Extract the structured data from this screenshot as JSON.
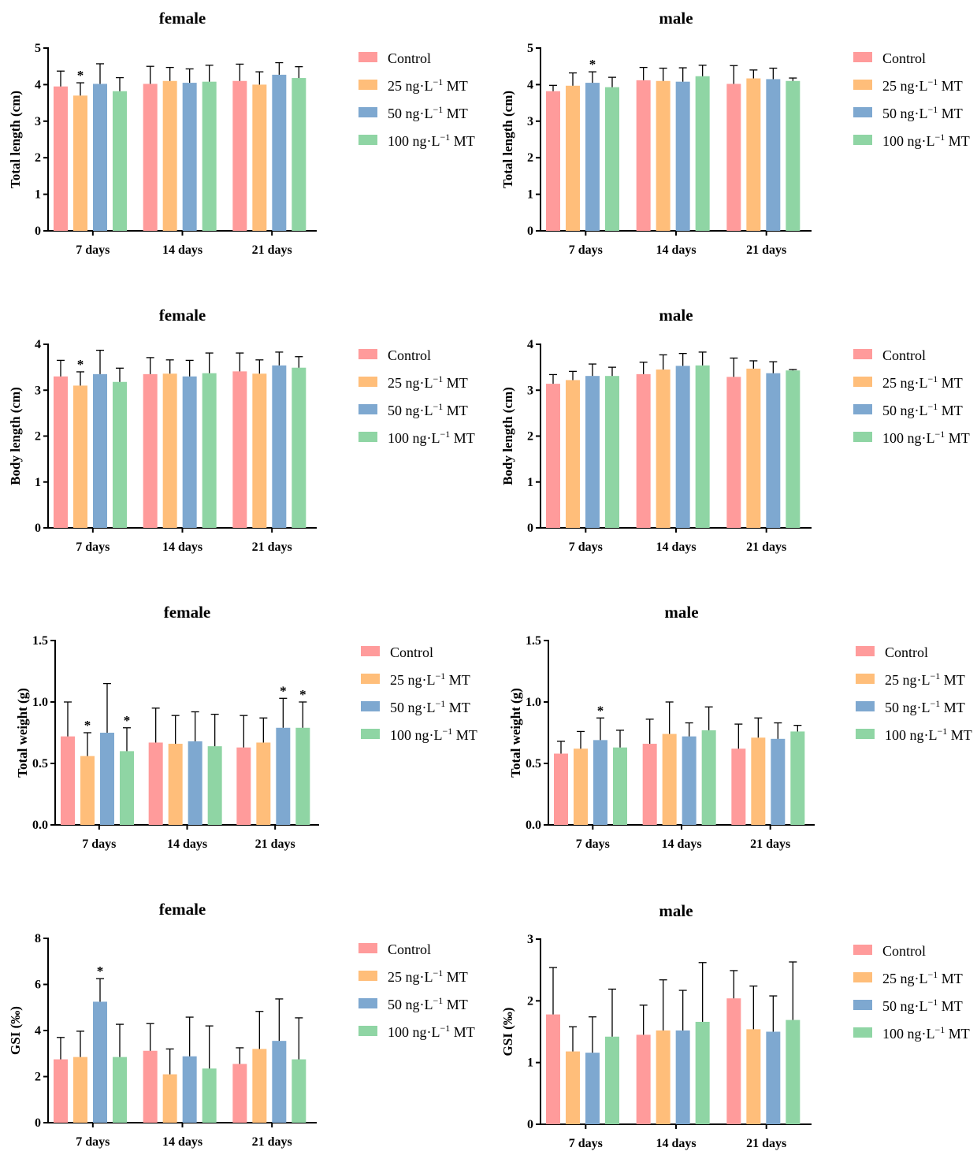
{
  "colors": {
    "Control": "#FF9B9B",
    "25 ng·L⁻¹ MT": "#FFBE7A",
    "50 ng·L⁻¹ MT": "#7EA8D0",
    "100 ng·L⁻¹ MT": "#8FD5A4"
  },
  "chart_data": [
    {
      "type": "bar",
      "title": "female",
      "ylabel": "Total length (cm)",
      "ylim": [
        0,
        5
      ],
      "yticks": [
        "0",
        "1",
        "2",
        "3",
        "4",
        "5"
      ],
      "categories": [
        "7 days",
        "14 days",
        "21 days"
      ],
      "series": [
        {
          "name": "Control",
          "label": "Control",
          "values": [
            3.95,
            4.02,
            4.1
          ],
          "errors": [
            0.42,
            0.48,
            0.46
          ],
          "sig": [
            false,
            false,
            false
          ]
        },
        {
          "name": "25 ng·L⁻¹ MT",
          "label": "25 ng·L",
          "sup": "−1",
          "suffix": "MT",
          "values": [
            3.7,
            4.1,
            4.0
          ],
          "errors": [
            0.35,
            0.37,
            0.35
          ],
          "sig": [
            true,
            false,
            false
          ]
        },
        {
          "name": "50 ng·L⁻¹ MT",
          "label": "50 ng·L",
          "sup": "−1",
          "suffix": "MT",
          "values": [
            4.02,
            4.05,
            4.27
          ],
          "errors": [
            0.55,
            0.38,
            0.33
          ],
          "sig": [
            false,
            false,
            false
          ]
        },
        {
          "name": "100 ng·L⁻¹ MT",
          "label": "100 ng·L",
          "sup": "−1",
          "suffix": "MT",
          "values": [
            3.82,
            4.08,
            4.18
          ],
          "errors": [
            0.37,
            0.45,
            0.31
          ],
          "sig": [
            false,
            false,
            false
          ]
        }
      ]
    },
    {
      "type": "bar",
      "title": "male",
      "ylabel": "Total length (cm)",
      "ylim": [
        0,
        5
      ],
      "yticks": [
        "0",
        "1",
        "2",
        "3",
        "4",
        "5"
      ],
      "categories": [
        "7 days",
        "14 days",
        "21 days"
      ],
      "series": [
        {
          "name": "Control",
          "label": "Control",
          "values": [
            3.82,
            4.12,
            4.02
          ],
          "errors": [
            0.16,
            0.35,
            0.5
          ],
          "sig": [
            false,
            false,
            false
          ]
        },
        {
          "name": "25 ng·L⁻¹ MT",
          "label": "25 ng·L",
          "sup": "−1",
          "suffix": "MT",
          "values": [
            3.97,
            4.1,
            4.17
          ],
          "errors": [
            0.35,
            0.35,
            0.23
          ],
          "sig": [
            false,
            false,
            false
          ]
        },
        {
          "name": "50 ng·L⁻¹ MT",
          "label": "50 ng·L",
          "sup": "−1",
          "suffix": "MT",
          "values": [
            4.05,
            4.08,
            4.15
          ],
          "errors": [
            0.3,
            0.38,
            0.3
          ],
          "sig": [
            true,
            false,
            false
          ]
        },
        {
          "name": "100 ng·L⁻¹ MT",
          "label": "100 ng·L",
          "sup": "−1",
          "suffix": "MT",
          "values": [
            3.93,
            4.23,
            4.1
          ],
          "errors": [
            0.27,
            0.3,
            0.08
          ],
          "sig": [
            false,
            false,
            false
          ]
        }
      ]
    },
    {
      "type": "bar",
      "title": "female",
      "ylabel": "Body length (cm)",
      "ylim": [
        0,
        4
      ],
      "yticks": [
        "0",
        "1",
        "2",
        "3",
        "4"
      ],
      "categories": [
        "7 days",
        "14 days",
        "21 days"
      ],
      "series": [
        {
          "name": "Control",
          "label": "Control",
          "values": [
            3.3,
            3.35,
            3.41
          ],
          "errors": [
            0.35,
            0.36,
            0.4
          ],
          "sig": [
            false,
            false,
            false
          ]
        },
        {
          "name": "25 ng·L⁻¹ MT",
          "label": "25 ng·L",
          "sup": "−1",
          "suffix": "MT",
          "values": [
            3.1,
            3.36,
            3.36
          ],
          "errors": [
            0.3,
            0.3,
            0.3
          ],
          "sig": [
            true,
            false,
            false
          ]
        },
        {
          "name": "50 ng·L⁻¹ MT",
          "label": "50 ng·L",
          "sup": "−1",
          "suffix": "MT",
          "values": [
            3.35,
            3.3,
            3.54
          ],
          "errors": [
            0.52,
            0.35,
            0.29
          ],
          "sig": [
            false,
            false,
            false
          ]
        },
        {
          "name": "100 ng·L⁻¹ MT",
          "label": "100 ng·L",
          "sup": "−1",
          "suffix": "MT",
          "values": [
            3.18,
            3.37,
            3.49
          ],
          "errors": [
            0.3,
            0.44,
            0.24
          ],
          "sig": [
            false,
            false,
            false
          ]
        }
      ]
    },
    {
      "type": "bar",
      "title": "male",
      "ylabel": "Body length (cm)",
      "ylim": [
        0,
        4
      ],
      "yticks": [
        "0",
        "1",
        "2",
        "3",
        "4"
      ],
      "categories": [
        "7 days",
        "14 days",
        "21 days"
      ],
      "series": [
        {
          "name": "Control",
          "label": "Control",
          "values": [
            3.14,
            3.35,
            3.29
          ],
          "errors": [
            0.2,
            0.26,
            0.41
          ],
          "sig": [
            false,
            false,
            false
          ]
        },
        {
          "name": "25 ng·L⁻¹ MT",
          "label": "25 ng·L",
          "sup": "−1",
          "suffix": "MT",
          "values": [
            3.22,
            3.45,
            3.47
          ],
          "errors": [
            0.19,
            0.32,
            0.17
          ],
          "sig": [
            false,
            false,
            false
          ]
        },
        {
          "name": "50 ng·L⁻¹ MT",
          "label": "50 ng·L",
          "sup": "−1",
          "suffix": "MT",
          "values": [
            3.31,
            3.53,
            3.37
          ],
          "errors": [
            0.26,
            0.27,
            0.25
          ],
          "sig": [
            false,
            false,
            false
          ]
        },
        {
          "name": "100 ng·L⁻¹ MT",
          "label": "100 ng·L",
          "sup": "−1",
          "suffix": "MT",
          "values": [
            3.31,
            3.54,
            3.43
          ],
          "errors": [
            0.19,
            0.29,
            0.02
          ],
          "sig": [
            false,
            false,
            false
          ]
        }
      ]
    },
    {
      "type": "bar",
      "title": "female",
      "ylabel": "Total weight (g)",
      "ylim": [
        0,
        1.5
      ],
      "yticks": [
        "0.0",
        "0.5",
        "1.0",
        "1.5"
      ],
      "categories": [
        "7 days",
        "14 days",
        "21 days"
      ],
      "series": [
        {
          "name": "Control",
          "label": "Control",
          "values": [
            0.72,
            0.67,
            0.63
          ],
          "errors": [
            0.28,
            0.28,
            0.26
          ],
          "sig": [
            false,
            false,
            false
          ]
        },
        {
          "name": "25 ng·L⁻¹ MT",
          "label": "25 ng·L",
          "sup": "−1",
          "suffix": "MT",
          "values": [
            0.56,
            0.66,
            0.67
          ],
          "errors": [
            0.19,
            0.23,
            0.2
          ],
          "sig": [
            true,
            false,
            false
          ]
        },
        {
          "name": "50 ng·L⁻¹ MT",
          "label": "50 ng·L",
          "sup": "−1",
          "suffix": "MT",
          "values": [
            0.75,
            0.68,
            0.79
          ],
          "errors": [
            0.4,
            0.24,
            0.24
          ],
          "sig": [
            false,
            false,
            true
          ]
        },
        {
          "name": "100 ng·L⁻¹ MT",
          "label": "100 ng·L",
          "sup": "−1",
          "suffix": "MT",
          "values": [
            0.6,
            0.64,
            0.79
          ],
          "errors": [
            0.19,
            0.26,
            0.21
          ],
          "sig": [
            true,
            false,
            true
          ]
        }
      ]
    },
    {
      "type": "bar",
      "title": "male",
      "ylabel": "Total weight (g)",
      "ylim": [
        0,
        1.5
      ],
      "yticks": [
        "0.0",
        "0.5",
        "1.0",
        "1.5"
      ],
      "categories": [
        "7 days",
        "14 days",
        "21 days"
      ],
      "series": [
        {
          "name": "Control",
          "label": "Control",
          "values": [
            0.58,
            0.66,
            0.62
          ],
          "errors": [
            0.1,
            0.2,
            0.2
          ],
          "sig": [
            false,
            false,
            false
          ]
        },
        {
          "name": "25 ng·L⁻¹ MT",
          "label": "25 ng·L",
          "sup": "−1",
          "suffix": "MT",
          "values": [
            0.62,
            0.74,
            0.71
          ],
          "errors": [
            0.14,
            0.26,
            0.16
          ],
          "sig": [
            false,
            false,
            false
          ]
        },
        {
          "name": "50 ng·L⁻¹ MT",
          "label": "50 ng·L",
          "sup": "−1",
          "suffix": "MT",
          "values": [
            0.69,
            0.72,
            0.7
          ],
          "errors": [
            0.18,
            0.11,
            0.13
          ],
          "sig": [
            true,
            false,
            false
          ]
        },
        {
          "name": "100 ng·L⁻¹ MT",
          "label": "100 ng·L",
          "sup": "−1",
          "suffix": "MT",
          "values": [
            0.63,
            0.77,
            0.76
          ],
          "errors": [
            0.14,
            0.19,
            0.05
          ],
          "sig": [
            false,
            false,
            false
          ]
        }
      ]
    },
    {
      "type": "bar",
      "title": "female",
      "ylabel": "GSI (‰)",
      "ylim": [
        0,
        8
      ],
      "yticks": [
        "0",
        "2",
        "4",
        "6",
        "8"
      ],
      "categories": [
        "7 days",
        "14 days",
        "21 days"
      ],
      "series": [
        {
          "name": "Control",
          "label": "Control",
          "values": [
            2.75,
            3.12,
            2.55
          ],
          "errors": [
            0.95,
            1.18,
            0.7
          ],
          "sig": [
            false,
            false,
            false
          ]
        },
        {
          "name": "25 ng·L⁻¹ MT",
          "label": "25 ng·L",
          "sup": "−1",
          "suffix": "MT",
          "values": [
            2.85,
            2.1,
            3.2
          ],
          "errors": [
            1.12,
            1.1,
            1.63
          ],
          "sig": [
            false,
            false,
            false
          ]
        },
        {
          "name": "50 ng·L⁻¹ MT",
          "label": "50 ng·L",
          "sup": "−1",
          "suffix": "MT",
          "values": [
            5.25,
            2.88,
            3.55
          ],
          "errors": [
            1.0,
            1.7,
            1.82
          ],
          "sig": [
            true,
            false,
            false
          ]
        },
        {
          "name": "100 ng·L⁻¹ MT",
          "label": "100 ng·L",
          "sup": "−1",
          "suffix": "MT",
          "values": [
            2.85,
            2.35,
            2.75
          ],
          "errors": [
            1.42,
            1.85,
            1.8
          ],
          "sig": [
            false,
            false,
            false
          ]
        }
      ]
    },
    {
      "type": "bar",
      "title": "male",
      "ylabel": "GSI (‰)",
      "ylim": [
        0,
        3
      ],
      "yticks": [
        "0",
        "1",
        "2",
        "3"
      ],
      "categories": [
        "7 days",
        "14 days",
        "21 days"
      ],
      "series": [
        {
          "name": "Control",
          "label": "Control",
          "values": [
            1.78,
            1.45,
            2.04
          ],
          "errors": [
            0.76,
            0.48,
            0.45
          ],
          "sig": [
            false,
            false,
            false
          ]
        },
        {
          "name": "25 ng·L⁻¹ MT",
          "label": "25 ng·L",
          "sup": "−1",
          "suffix": "MT",
          "values": [
            1.18,
            1.52,
            1.54
          ],
          "errors": [
            0.4,
            0.82,
            0.7
          ],
          "sig": [
            false,
            false,
            false
          ]
        },
        {
          "name": "50 ng·L⁻¹ MT",
          "label": "50 ng·L",
          "sup": "−1",
          "suffix": "MT",
          "values": [
            1.16,
            1.52,
            1.5
          ],
          "errors": [
            0.58,
            0.65,
            0.58
          ],
          "sig": [
            false,
            false,
            false
          ]
        },
        {
          "name": "100 ng·L⁻¹ MT",
          "label": "100 ng·L",
          "sup": "−1",
          "suffix": "MT",
          "values": [
            1.42,
            1.66,
            1.69
          ],
          "errors": [
            0.77,
            0.96,
            0.94
          ],
          "sig": [
            false,
            false,
            false
          ]
        }
      ]
    }
  ]
}
